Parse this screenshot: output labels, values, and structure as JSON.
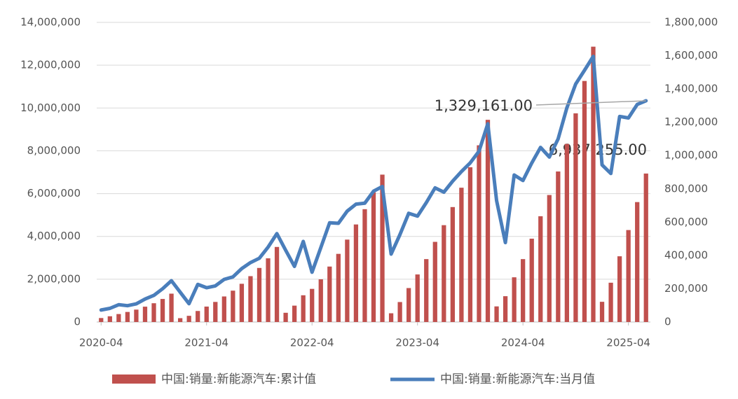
{
  "chart_data": {
    "type": "bar_line",
    "categories": [
      "2020-04",
      null,
      null,
      null,
      null,
      null,
      null,
      null,
      null,
      null,
      null,
      null,
      "2021-04",
      null,
      null,
      null,
      null,
      null,
      null,
      null,
      null,
      null,
      null,
      null,
      "2022-04",
      null,
      null,
      null,
      null,
      null,
      null,
      null,
      null,
      null,
      null,
      null,
      "2023-04",
      null,
      null,
      null,
      null,
      null,
      null,
      null,
      null,
      null,
      null,
      null,
      "2024-04",
      null,
      null,
      null,
      null,
      null,
      null,
      null,
      null,
      null,
      null,
      null,
      "2025-04",
      null,
      null
    ],
    "series": [
      {
        "name": "中国:销量:新能源汽车:累计值",
        "color": "#c0504d",
        "type": "bar",
        "axis": "y",
        "values": [
          186000,
          268000,
          372000,
          470000,
          579000,
          717000,
          877000,
          1077000,
          1325000,
          179000,
          289000,
          515000,
          721000,
          938000,
          1194000,
          1465000,
          1786000,
          2143000,
          2526000,
          2976000,
          3507000,
          431000,
          765000,
          1249000,
          1548000,
          1995000,
          2591000,
          3184000,
          3850000,
          4558000,
          5272000,
          6058000,
          6887000,
          408000,
          933000,
          1586000,
          2222000,
          2939000,
          3745000,
          4525000,
          5371000,
          6275000,
          7231000,
          8257000,
          9448000,
          729000,
          1206000,
          2089000,
          2939000,
          3894000,
          4943000,
          5934000,
          7034000,
          8321000,
          9751000,
          11263000,
          12866000,
          944000,
          1836000,
          3071000,
          4297000,
          5604000,
          6937255
        ]
      },
      {
        "name": "中国:销量:新能源汽车:当月值",
        "color": "#4a7ebb",
        "type": "line",
        "axis": "y2",
        "values": [
          72000,
          82000,
          104000,
          98000,
          109000,
          138000,
          160000,
          200000,
          248000,
          179000,
          110000,
          226000,
          206000,
          217000,
          256000,
          271000,
          321000,
          357000,
          383000,
          450000,
          531000,
          431000,
          334000,
          484000,
          299000,
          447000,
          596000,
          593000,
          666000,
          708000,
          714000,
          786000,
          814000,
          408000,
          525000,
          653000,
          636000,
          717000,
          806000,
          780000,
          846000,
          904000,
          956000,
          1026000,
          1191000,
          729000,
          477000,
          883000,
          850000,
          955000,
          1049000,
          991000,
          1100000,
          1287000,
          1430000,
          1512000,
          1596000,
          944000,
          892000,
          1235000,
          1226000,
          1307000,
          1329161
        ]
      }
    ],
    "ylim": [
      0,
      14000000
    ],
    "yticks": [
      0,
      {
        "value": 2000000,
        "label": "2,000,000"
      },
      {
        "value": 4000000,
        "label": "4,000,000"
      },
      {
        "value": 6000000,
        "label": "6,000,000"
      },
      {
        "value": 8000000,
        "label": "8,000,000"
      },
      {
        "value": 10000000,
        "label": "10,000,000"
      },
      {
        "value": 12000000,
        "label": "12,000,000"
      },
      {
        "value": 14000000,
        "label": "14,000,000"
      }
    ],
    "y2lim": [
      0,
      1800000
    ],
    "y2ticks": [
      0,
      {
        "value": 200000,
        "label": "200,000"
      },
      {
        "value": 400000,
        "label": "400,000"
      },
      {
        "value": 600000,
        "label": "600,000"
      },
      {
        "value": 800000,
        "label": "800,000"
      },
      {
        "value": 1000000,
        "label": "1,000,000"
      },
      {
        "value": 1200000,
        "label": "1,200,000"
      },
      {
        "value": 1400000,
        "label": "1,400,000"
      },
      {
        "value": 1600000,
        "label": "1,600,000"
      },
      {
        "value": 1800000,
        "label": "1,800,000"
      }
    ],
    "annotations": [
      "1,329,161.00",
      "6,937,255.00"
    ],
    "grid": true,
    "legend": "bottom"
  }
}
